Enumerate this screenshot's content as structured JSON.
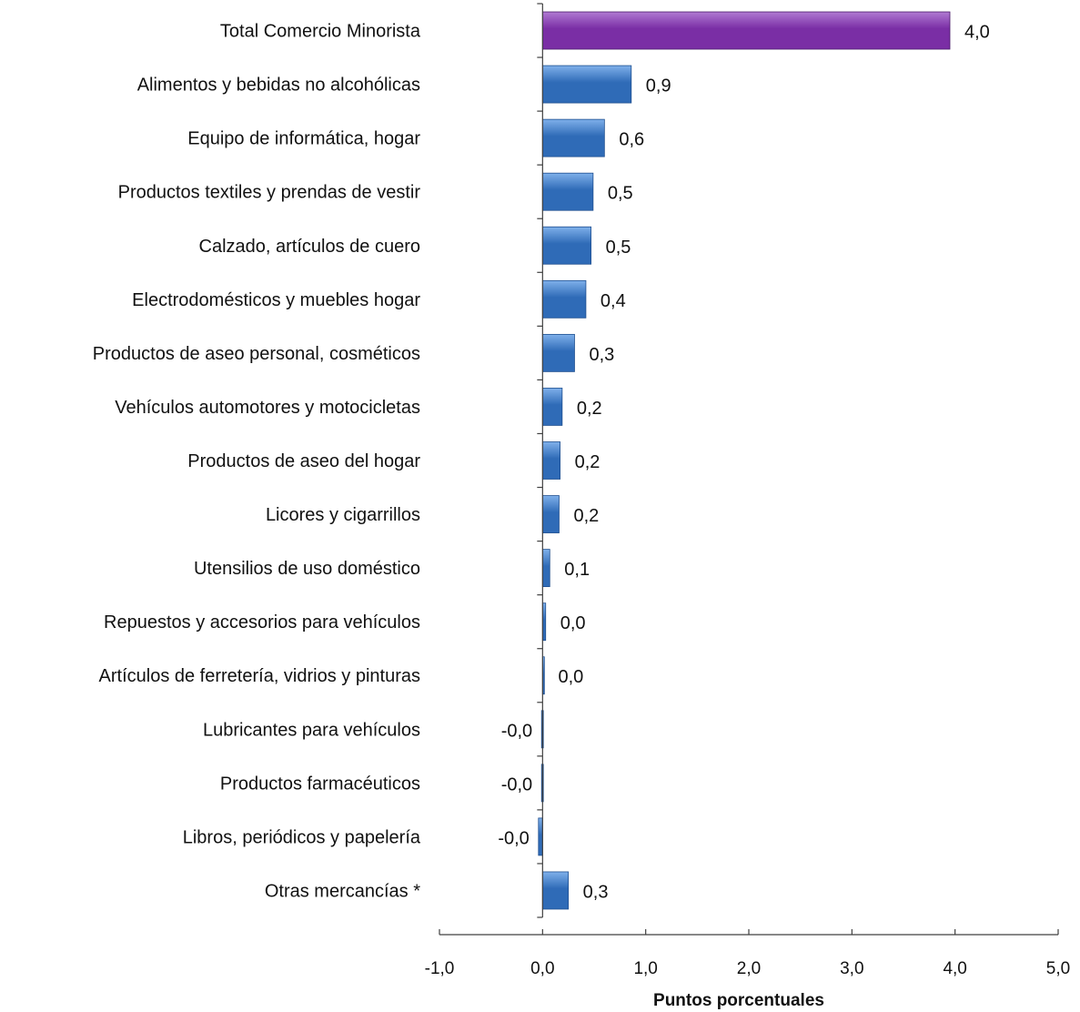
{
  "chart_data": {
    "type": "bar",
    "orientation": "horizontal",
    "title": "",
    "xlabel": "Puntos porcentuales",
    "ylabel": "",
    "xlim": [
      -1.0,
      5.0
    ],
    "x_ticks": [
      "-1,0",
      "0,0",
      "1,0",
      "2,0",
      "3,0",
      "4,0",
      "5,0"
    ],
    "x_tick_values": [
      -1,
      0,
      1,
      2,
      3,
      4,
      5
    ],
    "grid": false,
    "legend": "none",
    "categories": [
      "Total Comercio Minorista",
      "Alimentos y bebidas no alcohólicas",
      "Equipo de informática, hogar",
      "Productos textiles y prendas de vestir",
      "Calzado, artículos de cuero",
      "Electrodomésticos y muebles hogar",
      "Productos de aseo personal, cosméticos",
      "Vehículos automotores y motocicletas",
      "Productos de aseo del hogar",
      "Licores y cigarrillos",
      "Utensilios de uso doméstico",
      "Repuestos y accesorios para vehículos",
      "Artículos de ferretería, vidrios y pinturas",
      "Lubricantes para vehículos",
      "Productos farmacéuticos",
      "Libros, periódicos y papelería",
      "Otras mercancías  *"
    ],
    "values": [
      3.95,
      0.86,
      0.6,
      0.49,
      0.47,
      0.42,
      0.31,
      0.19,
      0.17,
      0.16,
      0.07,
      0.03,
      0.01,
      -0.01,
      -0.01,
      -0.04,
      0.25
    ],
    "value_labels": [
      "4,0",
      "0,9",
      "0,6",
      "0,5",
      "0,5",
      "0,4",
      "0,3",
      "0,2",
      "0,2",
      "0,2",
      "0,1",
      "0,0",
      "0,0",
      "-0,0",
      "-0,0",
      "-0,0",
      "0,3"
    ],
    "colors": {
      "highlight": "#7a2ea5",
      "highlight_light": "#b07ad2",
      "bar": "#2f6bb7",
      "bar_light": "#7fb0ea",
      "axis": "#404040"
    },
    "highlight_index": 0
  }
}
